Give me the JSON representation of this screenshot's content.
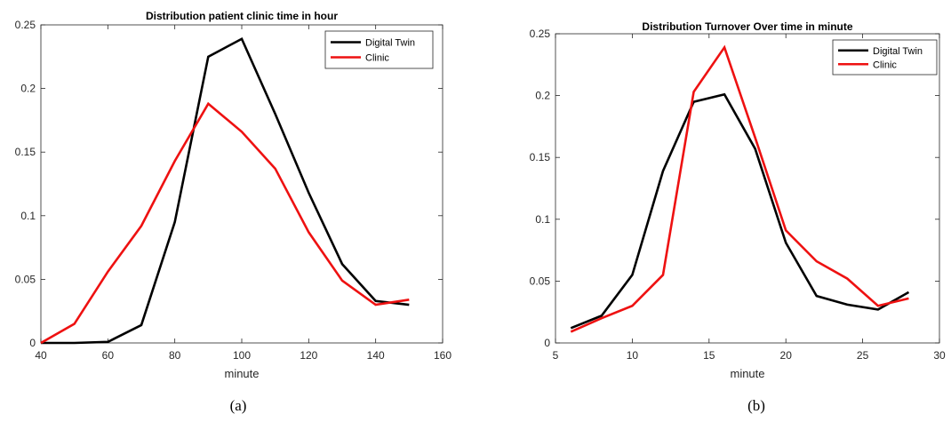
{
  "colors": {
    "digital_twin": "#000000",
    "clinic": "#ee1111",
    "axis": "#262626"
  },
  "chart_data": [
    {
      "type": "line",
      "title": "Distribution patient clinic time in hour",
      "xlabel": "minute",
      "ylabel": "",
      "caption": "(a)",
      "xlim": [
        40,
        160
      ],
      "ylim": [
        0,
        0.25
      ],
      "xticks": [
        40,
        60,
        80,
        100,
        120,
        140,
        160
      ],
      "yticks": [
        0,
        0.05,
        0.1,
        0.15,
        0.2,
        0.25
      ],
      "xtick_labels": [
        "40",
        "60",
        "80",
        "100",
        "120",
        "140",
        "160"
      ],
      "ytick_labels": [
        "0",
        "0.05",
        "0.1",
        "0.15",
        "0.2",
        "0.25"
      ],
      "legend_position": "top-right",
      "series": [
        {
          "name": "Digital Twin",
          "color_key": "digital_twin",
          "x": [
            40,
            50,
            60,
            70,
            80,
            90,
            100,
            110,
            120,
            130,
            140,
            150
          ],
          "y": [
            0,
            0,
            0.0008,
            0.014,
            0.095,
            0.225,
            0.239,
            0.18,
            0.118,
            0.062,
            0.033,
            0.03
          ]
        },
        {
          "name": "Clinic",
          "color_key": "clinic",
          "x": [
            40,
            50,
            60,
            70,
            80,
            90,
            100,
            110,
            120,
            130,
            140,
            150
          ],
          "y": [
            0,
            0.015,
            0.056,
            0.092,
            0.143,
            0.188,
            0.166,
            0.137,
            0.087,
            0.049,
            0.03,
            0.034
          ]
        }
      ]
    },
    {
      "type": "line",
      "title": "Distribution Turnover Over time in minute",
      "xlabel": "minute",
      "ylabel": "",
      "caption": "(b)",
      "xlim": [
        5,
        30
      ],
      "ylim": [
        0,
        0.25
      ],
      "xticks": [
        5,
        10,
        15,
        20,
        25,
        30
      ],
      "yticks": [
        0,
        0.05,
        0.1,
        0.15,
        0.2,
        0.25
      ],
      "xtick_labels": [
        "5",
        "10",
        "15",
        "20",
        "25",
        "30"
      ],
      "ytick_labels": [
        "0",
        "0.05",
        "0.1",
        "0.15",
        "0.2",
        "0.25"
      ],
      "legend_position": "top-right",
      "series": [
        {
          "name": "Digital Twin",
          "color_key": "digital_twin",
          "x": [
            6,
            8,
            10,
            12,
            14,
            16,
            18,
            20,
            22,
            24,
            26,
            28
          ],
          "y": [
            0.012,
            0.022,
            0.055,
            0.139,
            0.195,
            0.201,
            0.157,
            0.081,
            0.038,
            0.031,
            0.027,
            0.041
          ]
        },
        {
          "name": "Clinic",
          "color_key": "clinic",
          "x": [
            6,
            8,
            10,
            12,
            14,
            16,
            18,
            20,
            22,
            24,
            26,
            28
          ],
          "y": [
            0.009,
            0.02,
            0.03,
            0.055,
            0.203,
            0.239,
            0.166,
            0.091,
            0.066,
            0.052,
            0.03,
            0.036
          ]
        }
      ]
    }
  ]
}
